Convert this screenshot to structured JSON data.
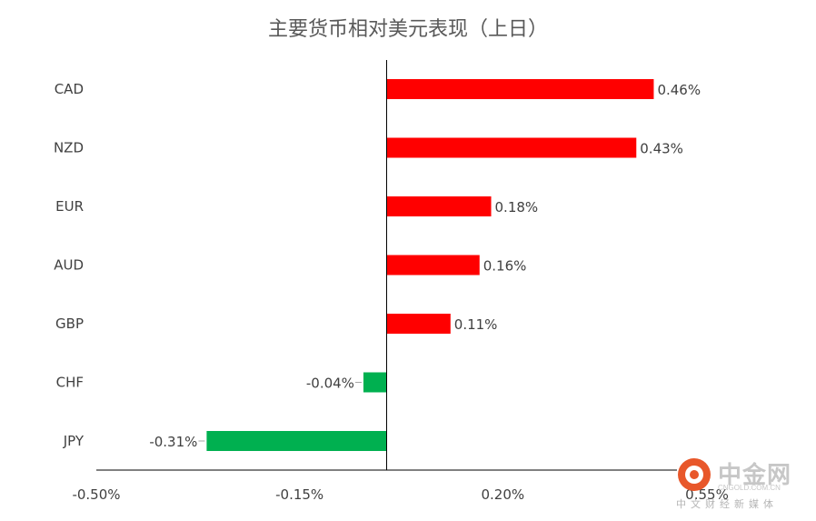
{
  "chart_data": {
    "type": "bar",
    "orientation": "horizontal",
    "title": "主要货币相对美元表现（上日）",
    "categories": [
      "CAD",
      "NZD",
      "EUR",
      "AUD",
      "GBP",
      "CHF",
      "JPY"
    ],
    "values": [
      0.46,
      0.43,
      0.18,
      0.16,
      0.11,
      -0.04,
      -0.31
    ],
    "labels": [
      "0.46%",
      "0.43%",
      "0.18%",
      "0.16%",
      "0.11%",
      "-0.04%",
      "-0.31%"
    ],
    "xlim": [
      -0.5,
      0.5
    ],
    "xticks": [
      -0.5,
      -0.15,
      0.2
    ],
    "xtick_labels": [
      "-0.50%",
      "-0.15%",
      "0.20%"
    ],
    "hidden_tick_label": "0.55%",
    "positive_color": "#ff0000",
    "negative_color": "#00b050",
    "grid": false,
    "legend": "none"
  },
  "watermark": {
    "brand": "中金网",
    "domain": "CNGOLD.COM.CN",
    "subtitle": "中文财经新媒体",
    "logo_icon": "cngold-logo-icon",
    "logo_color": "#e8572a"
  }
}
